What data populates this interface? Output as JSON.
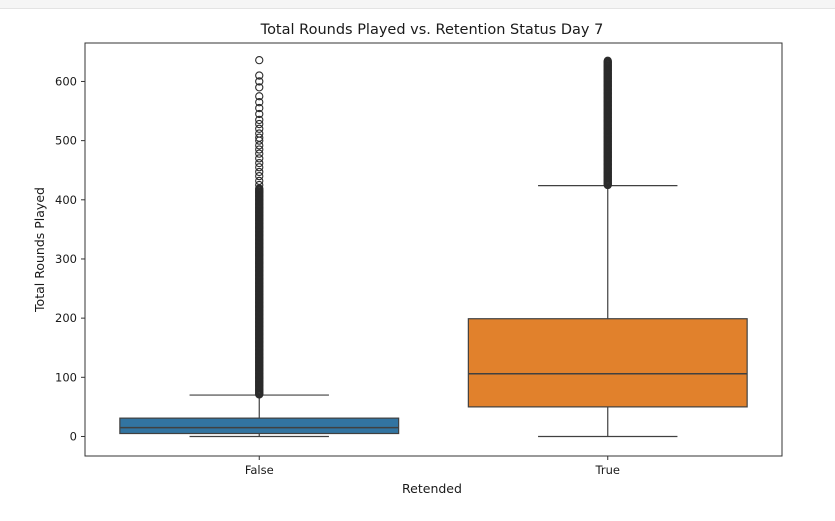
{
  "chart_data": {
    "type": "box",
    "title": "Total Rounds Played vs. Retention Status Day 7",
    "xlabel": "Retended",
    "ylabel": "Total Rounds Played",
    "categories": [
      "False",
      "True"
    ],
    "ylim": [
      -33,
      665
    ],
    "yticks": [
      0,
      100,
      200,
      300,
      400,
      500,
      600
    ],
    "grid": false,
    "colors": {
      "False": "#3274a1",
      "True": "#e1812c"
    },
    "boxes": [
      {
        "category": "False",
        "whisker_low": 0,
        "q1": 5,
        "median": 15,
        "q3": 31,
        "whisker_high": 70,
        "outlier_min": 71,
        "outlier_max": 636,
        "dense_outlier_max": 420,
        "sparse_outliers": [
          425,
          432,
          440,
          447,
          455,
          462,
          470,
          478,
          485,
          492,
          500,
          505,
          512,
          520,
          528,
          535,
          545,
          555,
          565,
          575,
          590,
          600,
          610,
          636
        ]
      },
      {
        "category": "True",
        "whisker_low": 0,
        "q1": 50,
        "median": 106,
        "q3": 199,
        "whisker_high": 424,
        "outlier_min": 425,
        "outlier_max": 636,
        "dense_outlier_max": 636,
        "sparse_outliers": []
      }
    ]
  }
}
